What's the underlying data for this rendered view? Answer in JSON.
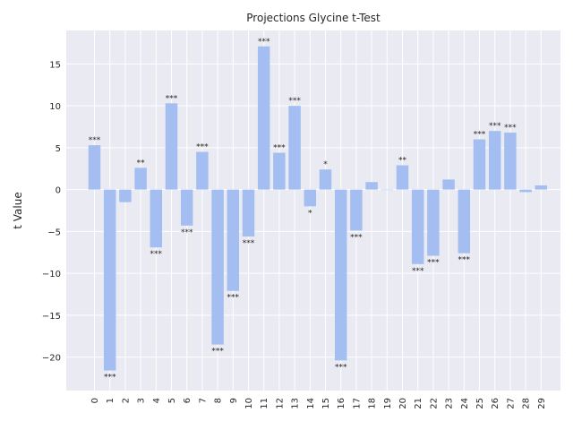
{
  "chart_data": {
    "type": "bar",
    "title": "Projections Glycine t-Test",
    "xlabel": "",
    "ylabel": "t Value",
    "categories": [
      "0",
      "1",
      "2",
      "3",
      "4",
      "5",
      "6",
      "7",
      "8",
      "9",
      "10",
      "11",
      "12",
      "13",
      "14",
      "15",
      "16",
      "17",
      "18",
      "19",
      "20",
      "21",
      "22",
      "23",
      "24",
      "25",
      "26",
      "27",
      "28",
      "29"
    ],
    "values": [
      5.3,
      -21.6,
      -1.5,
      2.6,
      -6.9,
      10.3,
      -4.3,
      4.5,
      -18.5,
      -12.1,
      -5.6,
      17.1,
      4.4,
      10.0,
      -2.0,
      2.4,
      -20.4,
      -4.9,
      0.9,
      0.0,
      2.9,
      -8.9,
      -7.9,
      1.2,
      -7.6,
      6.0,
      7.0,
      6.8,
      -0.3,
      0.5
    ],
    "significance": [
      "***",
      "***",
      "",
      "**",
      "***",
      "***",
      "***",
      "***",
      "***",
      "***",
      "***",
      "***",
      "***",
      "***",
      "*",
      "*",
      "***",
      "***",
      "",
      "",
      "**",
      "***",
      "***",
      "",
      "***",
      "***",
      "***",
      "***",
      "",
      ""
    ],
    "ylim": [
      -24,
      19
    ],
    "yticks": [
      -20,
      -15,
      -10,
      -5,
      0,
      5,
      10,
      15
    ],
    "ytick_labels": [
      "−20",
      "−15",
      "−10",
      "−5",
      "0",
      "5",
      "10",
      "15"
    ],
    "grid": true,
    "bar_color": "#a4bef2",
    "background_color": "#eaeaf2"
  }
}
